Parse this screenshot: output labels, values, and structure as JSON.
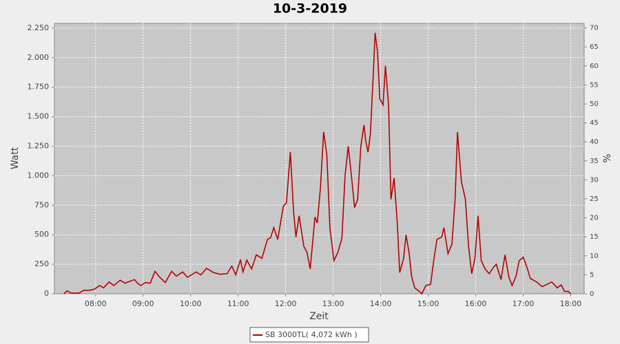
{
  "chart_data": {
    "type": "line",
    "title": "10-3-2019",
    "x_label": "Zeit",
    "y_label": "Watt",
    "y2_label": "%",
    "x": [
      "07:20",
      "07:24",
      "07:29",
      "07:39",
      "07:45",
      "07:52",
      "07:59",
      "08:05",
      "08:10",
      "08:17",
      "08:23",
      "08:31",
      "08:37",
      "08:49",
      "08:53",
      "08:57",
      "09:03",
      "09:09",
      "09:15",
      "09:21",
      "09:28",
      "09:36",
      "09:42",
      "09:50",
      "09:56",
      "10:07",
      "10:13",
      "10:20",
      "10:29",
      "10:37",
      "10:46",
      "10:52",
      "10:57",
      "11:03",
      "11:06",
      "11:11",
      "11:17",
      "11:23",
      "11:30",
      "11:37",
      "11:41",
      "11:45",
      "11:50",
      "11:57",
      "12:01",
      "12:06",
      "12:10",
      "12:13",
      "12:17",
      "12:23",
      "12:27",
      "12:31",
      "12:37",
      "12:40",
      "12:44",
      "12:48",
      "12:52",
      "12:56",
      "13:01",
      "13:06",
      "13:11",
      "13:15",
      "13:19",
      "13:23",
      "13:27",
      "13:31",
      "13:35",
      "13:39",
      "13:41",
      "13:44",
      "13:47",
      "13:51",
      "13:53",
      "13:56",
      "13:59",
      "14:03",
      "14:06",
      "14:10",
      "14:13",
      "14:17",
      "14:21",
      "14:24",
      "14:29",
      "14:32",
      "14:36",
      "14:39",
      "14:43",
      "14:49",
      "14:52",
      "14:57",
      "15:03",
      "15:07",
      "15:11",
      "15:17",
      "15:20",
      "15:25",
      "15:30",
      "15:34",
      "15:37",
      "15:42",
      "15:47",
      "15:51",
      "15:55",
      "15:59",
      "16:03",
      "16:07",
      "16:12",
      "16:17",
      "16:22",
      "16:26",
      "16:32",
      "16:37",
      "16:42",
      "16:46",
      "16:51",
      "16:55",
      "17:00",
      "17:05",
      "17:09",
      "17:17",
      "17:24",
      "17:30",
      "17:36",
      "17:43",
      "17:48",
      "17:52",
      "17:57",
      "18:00"
    ],
    "series": [
      {
        "name": "SB 3000TL( 4,072 kWh )",
        "color": "#b40000",
        "values": [
          0,
          25,
          5,
          5,
          30,
          30,
          40,
          70,
          50,
          100,
          70,
          115,
          90,
          120,
          90,
          70,
          95,
          90,
          190,
          140,
          95,
          190,
          150,
          185,
          140,
          185,
          160,
          215,
          180,
          165,
          170,
          235,
          160,
          290,
          185,
          285,
          210,
          330,
          300,
          460,
          475,
          560,
          460,
          740,
          770,
          1200,
          700,
          480,
          660,
          400,
          350,
          210,
          650,
          600,
          900,
          1370,
          1180,
          550,
          280,
          350,
          470,
          1000,
          1250,
          1000,
          730,
          800,
          1250,
          1430,
          1300,
          1200,
          1350,
          1900,
          2210,
          2050,
          1650,
          1600,
          1930,
          1600,
          800,
          980,
          600,
          180,
          300,
          500,
          340,
          150,
          50,
          20,
          0,
          70,
          80,
          280,
          460,
          480,
          560,
          340,
          420,
          800,
          1370,
          950,
          800,
          400,
          170,
          300,
          660,
          280,
          210,
          170,
          220,
          250,
          120,
          330,
          140,
          70,
          150,
          280,
          310,
          220,
          130,
          100,
          60,
          80,
          100,
          50,
          75,
          20,
          20,
          0
        ]
      }
    ],
    "xlim": [
      "07:08",
      "18:17"
    ],
    "xticks": [
      "08:00",
      "09:00",
      "10:00",
      "11:00",
      "12:00",
      "13:00",
      "14:00",
      "15:00",
      "16:00",
      "17:00",
      "18:00"
    ],
    "ylim": [
      0,
      2290
    ],
    "yticks": [
      0,
      250,
      500,
      750,
      {
        "value": 1000,
        "label": "1.000"
      },
      {
        "value": 1250,
        "label": "1.250"
      },
      {
        "value": 1500,
        "label": "1.500"
      },
      {
        "value": 1750,
        "label": "1.750"
      },
      {
        "value": 2000,
        "label": "2.000"
      },
      {
        "value": 2250,
        "label": "2.250"
      }
    ],
    "y2lim": [
      0,
      71.2
    ],
    "y2ticks": [
      0,
      5,
      10,
      15,
      20,
      25,
      30,
      35,
      40,
      45,
      50,
      55,
      60,
      65,
      70
    ],
    "grid": true,
    "legend": "bottom"
  }
}
